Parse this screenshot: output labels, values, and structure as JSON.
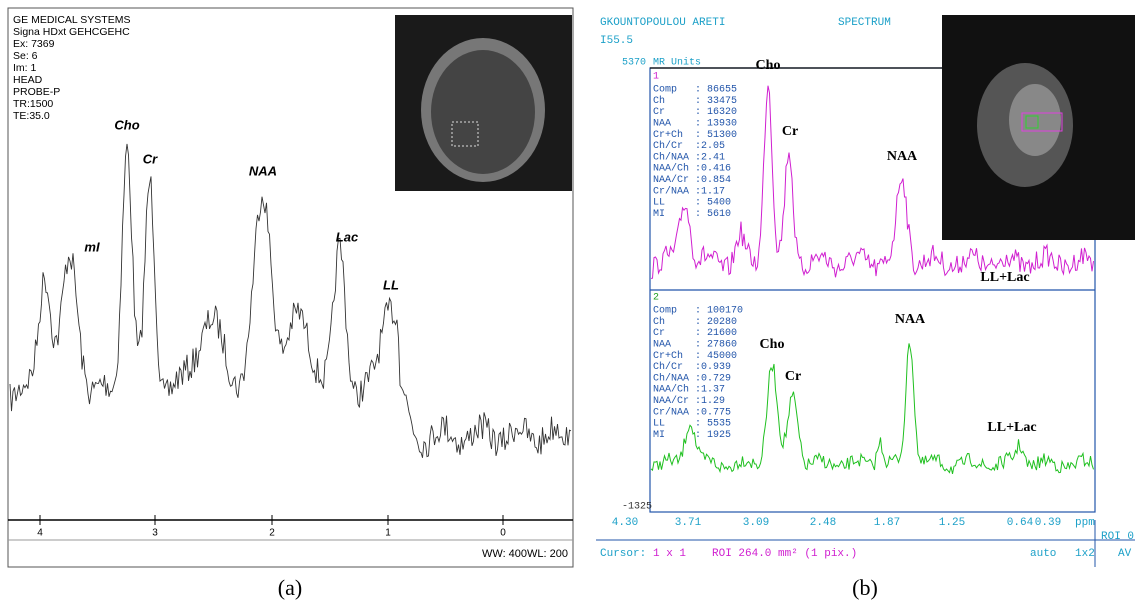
{
  "panel_a": {
    "header_lines": [
      "GE MEDICAL SYSTEMS",
      "Signa HDxt GEHCGEHC",
      "Ex: 7369",
      "Se: 6",
      "Im: 1",
      "HEAD",
      "PROBE-P",
      "TR:1500",
      "TE:35.0"
    ],
    "peak_labels": {
      "cho": "Cho",
      "cr": "Cr",
      "naa": "NAA",
      "mi": "mI",
      "lac": "Lac",
      "ll": "LL"
    },
    "axis_ticks": [
      "4",
      "3",
      "2",
      "1",
      "0"
    ],
    "footer": "WW: 400WL: 200",
    "caption": "(a)"
  },
  "panel_b": {
    "patient": "GKOUNTOPOULOU ARETI",
    "title": "SPECTRUM",
    "series_id": "I55.5",
    "y_top": "5370",
    "units": "MR Units",
    "y_bottom": "-1325",
    "spectrum_1": {
      "index": "1",
      "stats": [
        [
          "Comp",
          ": 86655"
        ],
        [
          "Ch",
          ": 33475"
        ],
        [
          "Cr",
          ": 16320"
        ],
        [
          "NAA",
          ": 13930"
        ],
        [
          "Cr+Ch",
          ": 51300"
        ],
        [
          "Ch/Cr",
          ":2.05"
        ],
        [
          "Ch/NAA",
          ":2.41"
        ],
        [
          "NAA/Ch",
          ":0.416"
        ],
        [
          "NAA/Cr",
          ":0.854"
        ],
        [
          "Cr/NAA",
          ":1.17"
        ],
        [
          "LL",
          ": 5400"
        ],
        [
          "MI",
          ": 5610"
        ]
      ],
      "peak_labels": {
        "cho": "Cho",
        "cr": "Cr",
        "naa": "NAA",
        "lllac": "LL+Lac"
      }
    },
    "spectrum_2": {
      "index": "2",
      "stats": [
        [
          "Comp",
          ": 100170"
        ],
        [
          "Ch",
          ": 20280"
        ],
        [
          "Cr",
          ": 21600"
        ],
        [
          "NAA",
          ": 27860"
        ],
        [
          "Cr+Ch",
          ": 45000"
        ],
        [
          "Ch/Cr",
          ":0.939"
        ],
        [
          "Ch/NAA",
          ":0.729"
        ],
        [
          "NAA/Ch",
          ":1.37"
        ],
        [
          "NAA/Cr",
          ":1.29"
        ],
        [
          "Cr/NAA",
          ":0.775"
        ],
        [
          "LL",
          ": 5535"
        ],
        [
          "MI",
          ": 1925"
        ]
      ],
      "peak_labels": {
        "cho": "Cho",
        "cr": "Cr",
        "naa": "NAA",
        "lllac": "LL+Lac"
      }
    },
    "x_ticks": [
      "4.30",
      "3.71",
      "3.09",
      "2.48",
      "1.87",
      "1.25",
      "0.64",
      "0.39"
    ],
    "x_unit": "ppm",
    "roi_right": "ROI 0",
    "footer": {
      "cursor": "Cursor:",
      "cursor_value": "1 x 1",
      "roi": "ROI 264.0 mm² (1 pix.)",
      "mode": "auto",
      "layout": "1x2",
      "avg": "AV"
    },
    "caption": "(b)"
  }
}
